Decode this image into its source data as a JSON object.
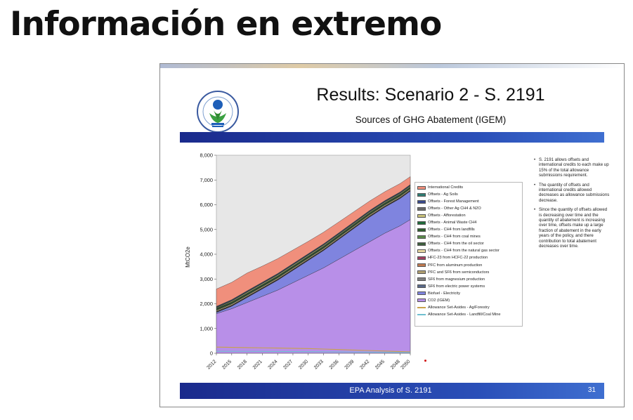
{
  "page_heading": "Información en extremo",
  "slide": {
    "title": "Results: Scenario 2 - S. 2191",
    "subtitle": "Sources of GHG Abatement (IGEM)",
    "footer": "EPA Analysis of S. 2191",
    "slide_number": "31",
    "notes": [
      "S. 2191 allows offsets and international credits to each make up 15% of the total allowance submissions requirement.",
      "The quantity of offsets and international credits allowed decreases as allowance submissions decrease.",
      "Since the quantity of offsets allowed is decreasing over time and the quantity of abatement is increasing over time, offsets make up a large fraction of abatement in the early years of the policy, and there contribution to total abatement decreases over time."
    ]
  },
  "colors": {
    "blue_band": "#1f3a9f",
    "plot_background": "#e7e7e7",
    "co2_igem": "#b88fe8",
    "biofuel": "#7f84df",
    "offsets": "#3a5a3a",
    "international_credits": "#f08f7c"
  },
  "chart_data": {
    "type": "area",
    "title": "Sources of GHG Abatement (IGEM)",
    "xlabel": "",
    "ylabel": "MtCO2e",
    "x": [
      2012,
      2015,
      2018,
      2021,
      2024,
      2027,
      2030,
      2033,
      2036,
      2039,
      2042,
      2045,
      2048,
      2050
    ],
    "ylim": [
      0,
      8000
    ],
    "yticks": [
      0,
      1000,
      2000,
      3000,
      4000,
      5000,
      6000,
      7000,
      8000
    ],
    "ytick_labels": [
      "0",
      "1,000",
      "2,000",
      "3,000",
      "4,000",
      "5,000",
      "6,000",
      "7,000",
      "8,000"
    ],
    "legend_position": "right",
    "grid": false,
    "series": [
      {
        "name": "International Credits",
        "color": "#f08f7c",
        "values": [
          700,
          700,
          720,
          650,
          600,
          550,
          500,
          470,
          440,
          410,
          380,
          360,
          340,
          320
        ]
      },
      {
        "name": "Offsets - Ag Soils",
        "color": "#2f7d74",
        "values": [
          20,
          20,
          20,
          20,
          20,
          20,
          20,
          20,
          20,
          20,
          20,
          20,
          20,
          20
        ]
      },
      {
        "name": "Offsets - Forest Management",
        "color": "#3a4a8c",
        "values": [
          20,
          25,
          25,
          25,
          25,
          25,
          25,
          25,
          25,
          25,
          25,
          25,
          25,
          25
        ]
      },
      {
        "name": "Offsets - Other Ag CH4 & N2O",
        "color": "#6a6a6a",
        "values": [
          15,
          15,
          15,
          15,
          15,
          15,
          15,
          15,
          15,
          15,
          15,
          15,
          15,
          15
        ]
      },
      {
        "name": "Offsets - Afforestation",
        "color": "#c9c27a",
        "values": [
          20,
          30,
          35,
          35,
          35,
          35,
          35,
          35,
          30,
          30,
          30,
          30,
          30,
          30
        ]
      },
      {
        "name": "Offsets - Animal Waste CH4",
        "color": "#1f6b3a",
        "values": [
          25,
          25,
          25,
          25,
          25,
          25,
          25,
          25,
          25,
          25,
          25,
          25,
          25,
          25
        ]
      },
      {
        "name": "Offsets - CH4 from landfills",
        "color": "#2f5f2f",
        "values": [
          25,
          25,
          25,
          25,
          25,
          25,
          25,
          25,
          25,
          25,
          25,
          25,
          25,
          25
        ]
      },
      {
        "name": "Offsets - CH4 from coal mines",
        "color": "#5a8a4a",
        "values": [
          20,
          20,
          20,
          20,
          20,
          20,
          20,
          20,
          20,
          20,
          20,
          20,
          20,
          20
        ]
      },
      {
        "name": "Offsets - CH4 from the oil sector",
        "color": "#3f5f3f",
        "values": [
          20,
          20,
          20,
          20,
          20,
          20,
          20,
          20,
          20,
          20,
          20,
          20,
          20,
          20
        ]
      },
      {
        "name": "Offsets - CH4 from the natural gas sector",
        "color": "#e8d8a0",
        "values": [
          30,
          35,
          35,
          35,
          35,
          35,
          35,
          35,
          35,
          35,
          35,
          35,
          35,
          35
        ]
      },
      {
        "name": "HFC-23 from HCFC-22 production",
        "color": "#a04060",
        "values": [
          10,
          10,
          10,
          10,
          10,
          10,
          10,
          10,
          10,
          10,
          10,
          10,
          10,
          10
        ]
      },
      {
        "name": "PFC from aluminum production",
        "color": "#c07a50",
        "values": [
          10,
          10,
          10,
          10,
          10,
          10,
          10,
          10,
          10,
          10,
          10,
          10,
          10,
          10
        ]
      },
      {
        "name": "PFC and SF6 from semiconductors",
        "color": "#b0a070",
        "values": [
          10,
          10,
          10,
          10,
          10,
          10,
          10,
          10,
          10,
          10,
          10,
          10,
          10,
          10
        ]
      },
      {
        "name": "SF6 from magnesium production",
        "color": "#808080",
        "values": [
          10,
          10,
          10,
          10,
          10,
          10,
          10,
          10,
          10,
          10,
          10,
          10,
          10,
          10
        ]
      },
      {
        "name": "SF6 from electric power systems",
        "color": "#5a6a8a",
        "values": [
          10,
          10,
          10,
          10,
          10,
          10,
          10,
          10,
          10,
          10,
          10,
          10,
          10,
          10
        ]
      },
      {
        "name": "Biofuel - Electricity",
        "color": "#7f84df",
        "values": [
          50,
          100,
          200,
          300,
          400,
          500,
          600,
          700,
          800,
          900,
          1000,
          1050,
          1100,
          1150
        ]
      },
      {
        "name": "CO2 (IGEM)",
        "color": "#b88fe8",
        "values": [
          1600,
          1800,
          2050,
          2300,
          2550,
          2850,
          3150,
          3450,
          3800,
          4150,
          4500,
          4850,
          5150,
          5400
        ]
      },
      {
        "name": "Allowance Set-Asides - Ag/Forestry",
        "color": "#c9a24a",
        "type": "line",
        "values": [
          250,
          240,
          230,
          220,
          210,
          200,
          190,
          170,
          150,
          130,
          110,
          90,
          70,
          60
        ]
      },
      {
        "name": "Allowance Set-Asides - Landfill/Coal Mine",
        "color": "#6fbfd0",
        "type": "line",
        "values": [
          80,
          80,
          78,
          75,
          72,
          70,
          65,
          60,
          55,
          50,
          45,
          40,
          35,
          30
        ]
      }
    ]
  }
}
